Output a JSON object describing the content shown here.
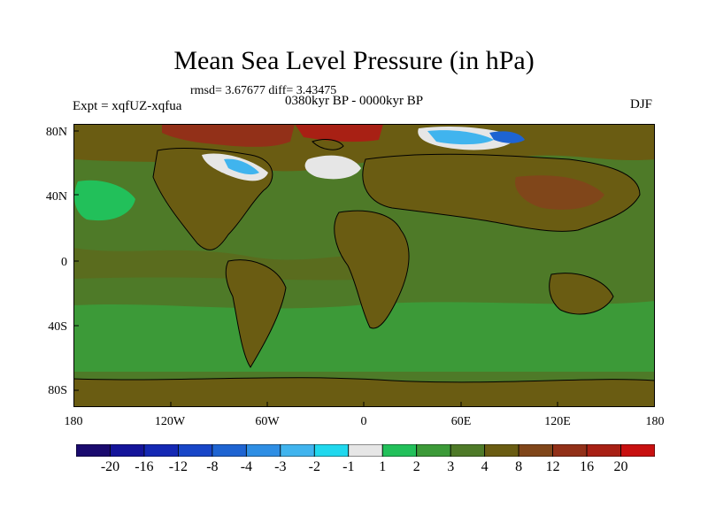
{
  "title": "Mean Sea Level Pressure (in hPa)",
  "stats": "rmsd= 3.67677 diff= 3.43475",
  "period": "0380kyr BP - 0000kyr BP",
  "experiment": "Expt = xqfUZ-xqfua",
  "season": "DJF",
  "lat_ticks": [
    "80N",
    "40N",
    "0",
    "40S",
    "80S"
  ],
  "lon_ticks": [
    "180",
    "120W",
    "60W",
    "0",
    "60E",
    "120E",
    "180"
  ],
  "colorbar": {
    "colors": [
      "#1a0a6e",
      "#14149a",
      "#1428b4",
      "#1846c8",
      "#1e64d2",
      "#2e8ee4",
      "#40b4ee",
      "#20d8ee",
      "#e6e6e6",
      "#22c05a",
      "#3c9a38",
      "#4e7a28",
      "#6a5c12",
      "#80461a",
      "#923018",
      "#a82014",
      "#c81010"
    ],
    "labels": [
      "-20",
      "-16",
      "-12",
      "-8",
      "-4",
      "-3",
      "-2",
      "-1",
      "1",
      "2",
      "3",
      "4",
      "8",
      "12",
      "16",
      "20"
    ]
  },
  "colors": {
    "ocean_default": "#4e7a28",
    "land_default": "#6a5c12",
    "coastline": "#000000"
  }
}
